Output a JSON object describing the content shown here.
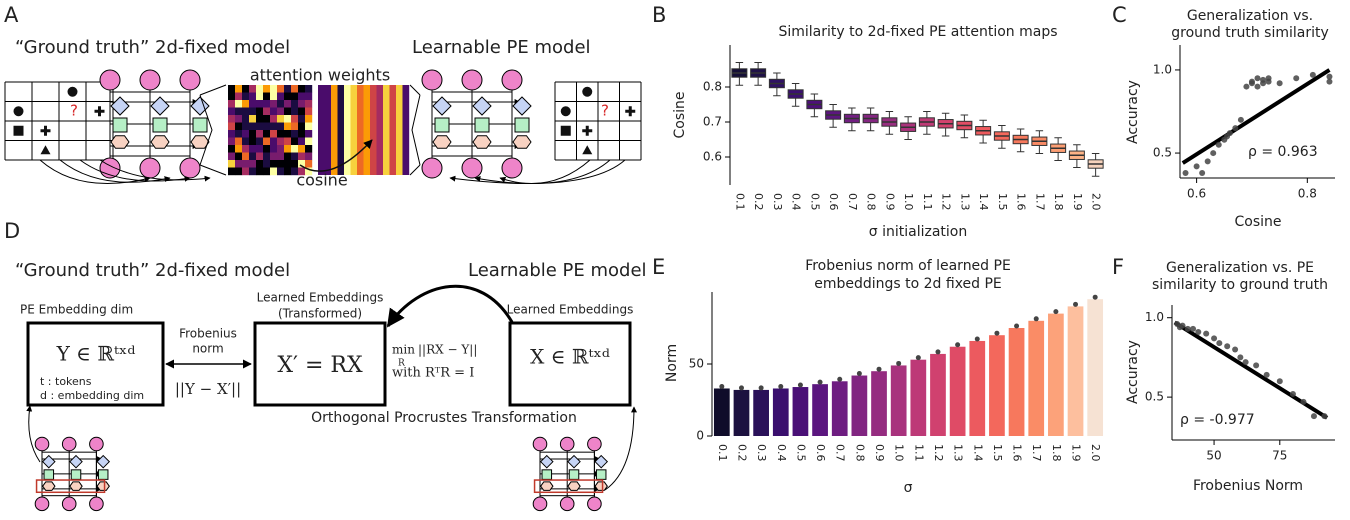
{
  "panels": [
    "A",
    "B",
    "C",
    "D",
    "E",
    "F"
  ],
  "diagram": {
    "a": {
      "left_title": "“Ground truth” 2d-fixed model",
      "right_title": "Learnable PE model",
      "attention": "attention weights",
      "cosine": "cosine",
      "question": "?"
    },
    "d": {
      "left_title": "“Ground truth” 2d-fixed model",
      "right_title": "Learnable PE model",
      "pe_dim": "PE Embedding dim",
      "y_space": "Y ∈ ℝᵗˣᵈ",
      "tokens": "t : tokens",
      "embedding_dim": "d : embedding dim",
      "frobenius": [
        "Frobenius",
        "norm"
      ],
      "difference": "||Y − X′||",
      "transformed": [
        "Learned Embeddings",
        "(Transformed)"
      ],
      "x_prime": "X′ = RX",
      "min": "min",
      "min_sub": "R",
      "objective": "||RX − Y||",
      "constraint": "with RᵀR = I",
      "learned": "Learned Embeddings",
      "x_space": "X ∈ ℝᵗˣᵈ",
      "procrustes": "Orthogonal Procrustes Transformation"
    }
  },
  "chart_data": [
    {
      "type": "box",
      "title": "Similarity to 2d-fixed PE attention maps",
      "x_label": "σ initialization",
      "y_label": "Cosine",
      "categories": [
        "0.1",
        "0.2",
        "0.3",
        "0.4",
        "0.5",
        "0.6",
        "0.7",
        "0.8",
        "0.9",
        "1.0",
        "1.1",
        "1.2",
        "1.3",
        "1.4",
        "1.5",
        "1.6",
        "1.7",
        "1.8",
        "1.9",
        "2.0"
      ],
      "whislo": [
        0.805,
        0.805,
        0.775,
        0.745,
        0.715,
        0.685,
        0.675,
        0.675,
        0.665,
        0.65,
        0.665,
        0.66,
        0.655,
        0.64,
        0.625,
        0.615,
        0.61,
        0.59,
        0.57,
        0.545
      ],
      "q1": [
        0.828,
        0.828,
        0.798,
        0.768,
        0.738,
        0.708,
        0.698,
        0.698,
        0.688,
        0.673,
        0.688,
        0.683,
        0.678,
        0.663,
        0.648,
        0.638,
        0.633,
        0.613,
        0.593,
        0.568
      ],
      "median": [
        0.84,
        0.84,
        0.81,
        0.78,
        0.75,
        0.72,
        0.71,
        0.71,
        0.7,
        0.685,
        0.7,
        0.695,
        0.69,
        0.675,
        0.66,
        0.65,
        0.645,
        0.625,
        0.605,
        0.58
      ],
      "q3": [
        0.852,
        0.852,
        0.822,
        0.792,
        0.762,
        0.732,
        0.722,
        0.722,
        0.712,
        0.697,
        0.712,
        0.707,
        0.702,
        0.687,
        0.672,
        0.662,
        0.657,
        0.637,
        0.617,
        0.592
      ],
      "whishi": [
        0.87,
        0.87,
        0.84,
        0.81,
        0.78,
        0.75,
        0.74,
        0.74,
        0.73,
        0.715,
        0.73,
        0.725,
        0.72,
        0.705,
        0.69,
        0.68,
        0.675,
        0.655,
        0.635,
        0.61
      ],
      "colors": [
        "#140e36",
        "#1f1147",
        "#2f1163",
        "#3b0f70",
        "#4d1078",
        "#5c167f",
        "#721f81",
        "#842681",
        "#982d80",
        "#ab337c",
        "#c03a76",
        "#d3436e",
        "#e24e65",
        "#ee5b5e",
        "#f4695c",
        "#f8795d",
        "#fa8b65",
        "#fc9e73",
        "#fdb386",
        "#f6d2bc"
      ],
      "ylim": [
        0.52,
        0.92
      ],
      "yticks": [
        0.6,
        0.7,
        0.8
      ]
    },
    {
      "type": "scatter",
      "title": [
        "Generalization vs.",
        "ground truth similarity"
      ],
      "x_label": "Cosine",
      "y_label": "Accuracy",
      "annotation": "ρ =  0.963",
      "x": [
        0.58,
        0.6,
        0.61,
        0.62,
        0.63,
        0.64,
        0.65,
        0.655,
        0.66,
        0.67,
        0.68,
        0.69,
        0.7,
        0.7,
        0.71,
        0.71,
        0.72,
        0.72,
        0.73,
        0.73,
        0.75,
        0.78,
        0.81,
        0.84,
        0.84
      ],
      "y": [
        0.38,
        0.42,
        0.38,
        0.45,
        0.5,
        0.55,
        0.58,
        0.6,
        0.62,
        0.65,
        0.7,
        0.9,
        0.92,
        0.93,
        0.9,
        0.95,
        0.94,
        0.92,
        0.95,
        0.93,
        0.92,
        0.95,
        0.97,
        0.96,
        0.93
      ],
      "trend": {
        "x": [
          0.575,
          0.84
        ],
        "y": [
          0.44,
          1.0
        ]
      },
      "color": "#444444",
      "xlim": [
        0.57,
        0.85
      ],
      "xticks": [
        0.6,
        0.8
      ],
      "ylim": [
        0.35,
        1.15
      ],
      "yticks": [
        0.5,
        {
          "value": 1,
          "label": "1.0"
        }
      ]
    },
    {
      "type": "bar",
      "title": [
        "Frobenius norm of learned PE",
        "embeddings to 2d fixed PE"
      ],
      "x_label": "σ",
      "y_label": "Norm",
      "categories": [
        "0.1",
        "0.2",
        "0.3",
        "0.4",
        "0.5",
        "0.6",
        "0.7",
        "0.8",
        "0.9",
        "1.0",
        "1.1",
        "1.2",
        "1.3",
        "1.4",
        "1.5",
        "1.6",
        "1.7",
        "1.8",
        "1.9",
        "2.0"
      ],
      "values": [
        33,
        32,
        32,
        33,
        34,
        36,
        38,
        42,
        45,
        49,
        53,
        57,
        62,
        66,
        70,
        75,
        80,
        85,
        90,
        95
      ],
      "colors": [
        "#0f0c2a",
        "#1c1140",
        "#2a1159",
        "#3a0f6e",
        "#4a1077",
        "#5b167f",
        "#6e1d81",
        "#812581",
        "#952c80",
        "#a8327d",
        "#bd3977",
        "#d0416f",
        "#df4b66",
        "#ec5a5f",
        "#f3685c",
        "#f7785d",
        "#fa8c66",
        "#fca27a",
        "#fdbf9e",
        "#f6e2d3"
      ],
      "ylim": [
        0,
        100
      ],
      "yticks": [
        0,
        50
      ]
    },
    {
      "type": "scatter",
      "title": [
        "Generalization vs. PE",
        "similarity to ground truth"
      ],
      "x_label": "Frobenius Norm",
      "y_label": "Accuracy",
      "annotation": "ρ =  -0.977",
      "x": [
        36,
        37,
        38,
        40,
        42,
        44,
        47,
        50,
        52,
        55,
        58,
        60,
        62,
        66,
        70,
        75,
        80,
        84,
        88,
        92
      ],
      "y": [
        0.96,
        0.94,
        0.95,
        0.93,
        0.93,
        0.91,
        0.9,
        0.87,
        0.84,
        0.82,
        0.8,
        0.75,
        0.72,
        0.7,
        0.64,
        0.6,
        0.52,
        0.47,
        0.38,
        0.38
      ],
      "trend": {
        "x": [
          35,
          93
        ],
        "y": [
          0.97,
          0.37
        ]
      },
      "color": "#444444",
      "xlim": [
        34,
        96
      ],
      "xticks": [
        50,
        75
      ],
      "ylim": [
        0.23,
        1.08
      ],
      "yticks": [
        0.5,
        {
          "value": 1,
          "label": "1.0"
        }
      ]
    }
  ]
}
